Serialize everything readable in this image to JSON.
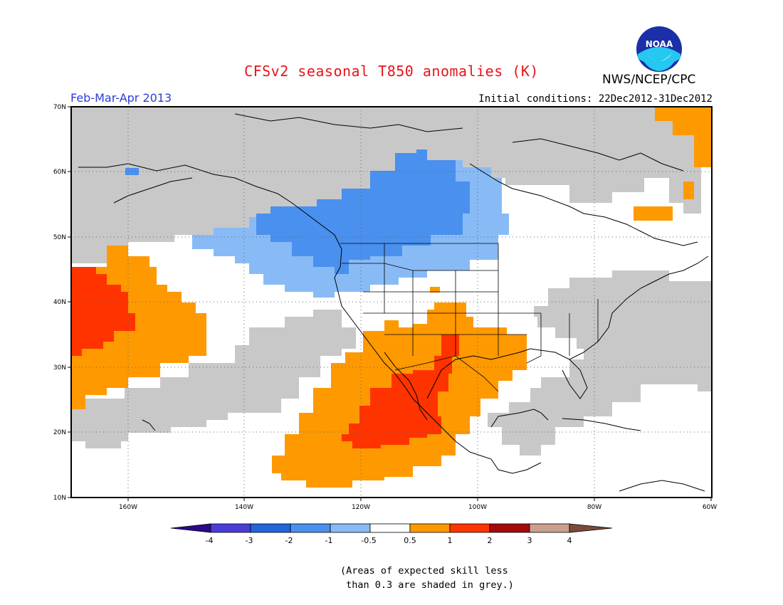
{
  "title": "CFSv2 seasonal T850 anomalies (K)",
  "organization": "NWS/NCEP/CPC",
  "logo_text": "NOAA",
  "period": "Feb-Mar-Apr 2013",
  "initial_conditions": "Initial conditions: 22Dec2012-31Dec2012",
  "map": {
    "lat_labels": [
      "70N",
      "60N",
      "50N",
      "40N",
      "30N",
      "20N",
      "10N"
    ],
    "lon_labels": [
      "160W",
      "140W",
      "120W",
      "100W",
      "80W",
      "60W"
    ],
    "projection": "lat-lon",
    "lon_range": [
      -172,
      -60
    ],
    "lat_range": [
      10,
      70
    ]
  },
  "legend": {
    "tick_labels": [
      "-4",
      "-3",
      "-2",
      "-1",
      "-0.5",
      "0.5",
      "1",
      "2",
      "3",
      "4"
    ],
    "colors": [
      "#2a0a8a",
      "#4a3cd4",
      "#2266dd",
      "#4a90ee",
      "#88bbf6",
      "#ffffff",
      "#ff9900",
      "#ff3300",
      "#a50a0a",
      "#c9a08e",
      "#7a4a3a"
    ]
  },
  "colors": {
    "grey_low_skill": "#c8c8c8",
    "neg_0_5_to_1": "#88bbf6",
    "neg_1_to_2": "#4a90ee",
    "pos_0_5_to_1": "#ff9900",
    "pos_1_to_2": "#ff3300",
    "title": "#e8131a",
    "period": "#2a3cd8"
  },
  "note_line1": "(Areas of expected skill less",
  "note_line2": " than 0.3 are shaded in grey.)"
}
